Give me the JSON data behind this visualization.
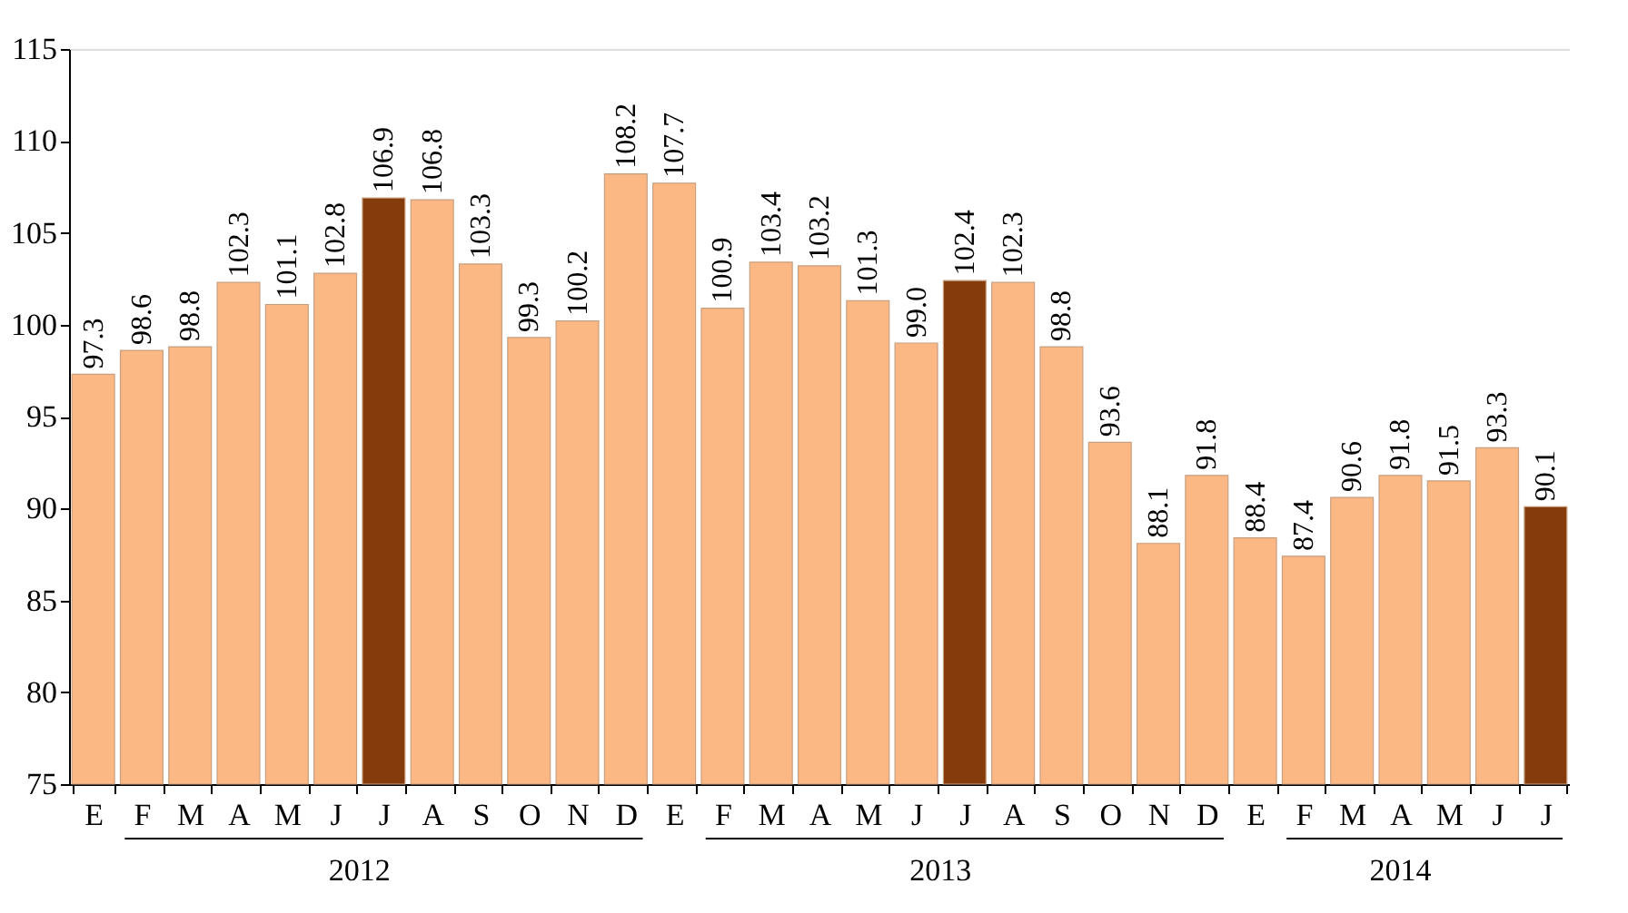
{
  "chart_data": {
    "type": "bar",
    "categories": [
      "E",
      "F",
      "M",
      "A",
      "M",
      "J",
      "J",
      "A",
      "S",
      "O",
      "N",
      "D",
      "E",
      "F",
      "M",
      "A",
      "M",
      "J",
      "J",
      "A",
      "S",
      "O",
      "N",
      "D",
      "E",
      "F",
      "M",
      "A",
      "M",
      "J",
      "J"
    ],
    "values": [
      97.3,
      98.6,
      98.8,
      102.3,
      101.1,
      102.8,
      106.9,
      106.8,
      103.3,
      99.3,
      100.2,
      108.2,
      107.7,
      100.9,
      103.4,
      103.2,
      101.3,
      99.0,
      102.4,
      102.3,
      98.8,
      93.6,
      88.1,
      91.8,
      88.4,
      87.4,
      90.6,
      91.8,
      91.5,
      93.3,
      90.1
    ],
    "value_labels": [
      "97.3",
      "98.6",
      "98.8",
      "102.3",
      "101.1",
      "102.8",
      "106.9",
      "106.8",
      "103.3",
      "99.3",
      "100.2",
      "108.2",
      "107.7",
      "100.9",
      "103.4",
      "103.2",
      "101.3",
      "99.0",
      "102.4",
      "102.3",
      "98.8",
      "93.6",
      "88.1",
      "91.8",
      "88.4",
      "87.4",
      "90.6",
      "91.8",
      "91.5",
      "93.3",
      "90.1"
    ],
    "colors": [
      "#fbb784",
      "#fbb784",
      "#fbb784",
      "#fbb784",
      "#fbb784",
      "#fbb784",
      "#843c0c",
      "#fbb784",
      "#fbb784",
      "#fbb784",
      "#fbb784",
      "#fbb784",
      "#fbb784",
      "#fbb784",
      "#fbb784",
      "#fbb784",
      "#fbb784",
      "#fbb784",
      "#843c0c",
      "#fbb784",
      "#fbb784",
      "#fbb784",
      "#fbb784",
      "#fbb784",
      "#fbb784",
      "#fbb784",
      "#fbb784",
      "#fbb784",
      "#fbb784",
      "#fbb784",
      "#843c0c"
    ],
    "annotations": [
      "2012",
      "2013",
      "2014"
    ],
    "ylim": [
      75,
      115
    ],
    "yticks": [
      75,
      80,
      85,
      90,
      95,
      100,
      105,
      110,
      115
    ]
  }
}
